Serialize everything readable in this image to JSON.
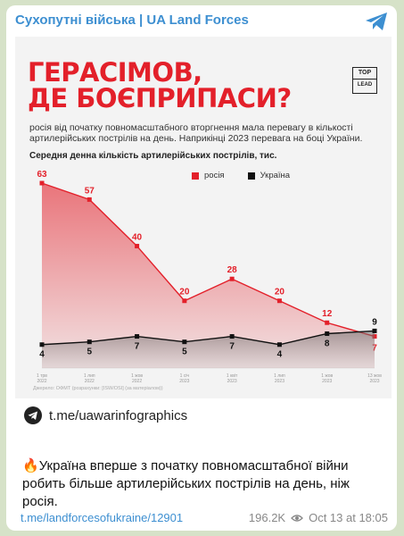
{
  "channel_name": "Сухопутні війська | UA Land Forces",
  "poster": {
    "title_line1": "ГЕРАСІМОВ,",
    "title_line2": "ДЕ БОЄПРИПАСИ?",
    "brand_line1": "TOP",
    "brand_line2": "LEAD",
    "subtitle": "росія від початку повномасштабного вторгнення мала перевагу в кількості артилерійських пострілів на день. Наприкінці 2023 перевага на боці України.",
    "chart_title": "Середня денна кількість артилерійських пострілів, тис.",
    "source": "Джерело: ОФМТ (розрахунки: [ISW/OSI] (за матеріалом))"
  },
  "chart_data": {
    "type": "area",
    "categories": [
      "1 трв 2022",
      "1 лип 2022",
      "1 жов 2022",
      "1 січ 2023",
      "1 квіт 2023",
      "1 лип 2023",
      "1 жов 2023",
      "13 жов 2023"
    ],
    "series": [
      {
        "name": "росія",
        "values": [
          63,
          57,
          40,
          20,
          28,
          20,
          12,
          7
        ],
        "color": "#e3202a"
      },
      {
        "name": "Україна",
        "values": [
          4,
          5,
          7,
          5,
          7,
          4,
          8,
          9
        ],
        "color": "#111111"
      }
    ],
    "ylim": [
      0,
      63
    ],
    "legend_position": "top-right"
  },
  "infographics_link": "t.me/uawarinfographics",
  "message_text": "Україна вперше з початку повномасштабної війни робить більше артилерійських пострілів на день, ніж росія.",
  "post_link": "t.me/landforcesofukraine/12901",
  "views": "196.2K",
  "timestamp": "Oct 13 at 18:05"
}
